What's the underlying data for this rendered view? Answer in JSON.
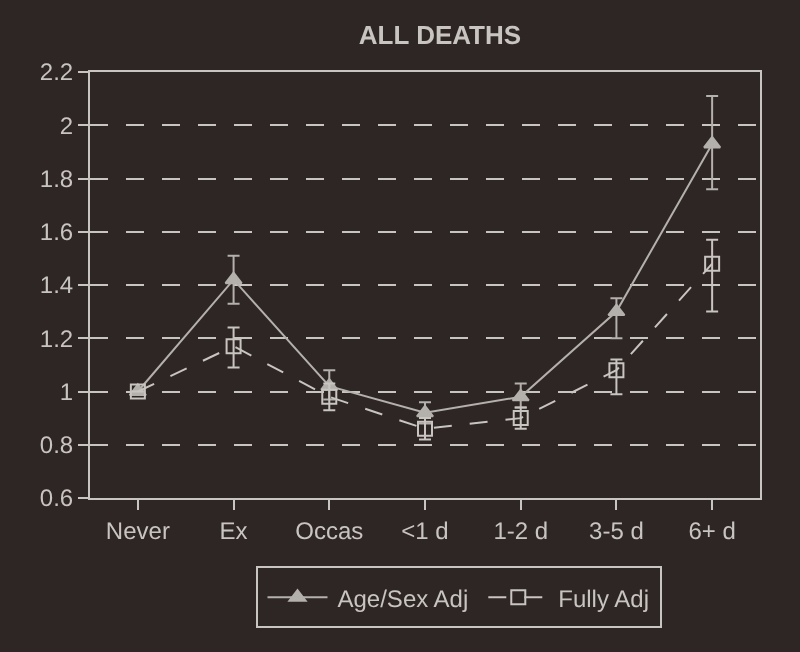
{
  "chart_data": {
    "type": "line",
    "title": "ALL DEATHS",
    "categories": [
      "Never",
      "Ex",
      "Occas",
      "<1 d",
      "1-2 d",
      "3-5 d",
      "6+ d"
    ],
    "series": [
      {
        "name": "Age/Sex Adj",
        "color": "#b4b0ac",
        "marker": "triangle",
        "line_style": "solid",
        "values": [
          1.0,
          1.42,
          1.02,
          0.92,
          0.98,
          1.3,
          1.93
        ],
        "errors": [
          null,
          [
            1.33,
            1.51
          ],
          [
            0.97,
            1.08
          ],
          [
            0.88,
            0.96
          ],
          [
            0.94,
            1.03
          ],
          [
            1.2,
            1.35
          ],
          [
            1.76,
            2.11
          ]
        ]
      },
      {
        "name": "Fully Adj",
        "color": "#c8c4c0",
        "marker": "square",
        "line_style": "dashed",
        "values": [
          1.0,
          1.17,
          0.98,
          0.86,
          0.9,
          1.08,
          1.48
        ],
        "errors": [
          null,
          [
            1.09,
            1.24
          ],
          [
            0.93,
            1.03
          ],
          [
            0.82,
            0.9
          ],
          [
            0.86,
            0.94
          ],
          [
            0.99,
            1.12
          ],
          [
            1.3,
            1.57
          ]
        ]
      }
    ],
    "ylim": [
      0.6,
      2.2
    ],
    "yticks": [
      0.6,
      0.8,
      1,
      1.2,
      1.4,
      1.6,
      1.8,
      2,
      2.2
    ],
    "grid": "y",
    "legend": "bottom"
  }
}
